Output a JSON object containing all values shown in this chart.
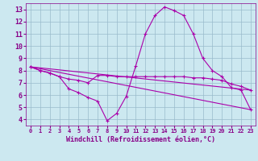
{
  "xlabel": "Windchill (Refroidissement éolien,°C)",
  "bg_color": "#cce8f0",
  "grid_color": "#99bbcc",
  "line_color": "#aa00aa",
  "text_color": "#880088",
  "xlim": [
    -0.5,
    23.5
  ],
  "ylim": [
    3.5,
    13.5
  ],
  "xticks": [
    0,
    1,
    2,
    3,
    4,
    5,
    6,
    7,
    8,
    9,
    10,
    11,
    12,
    13,
    14,
    15,
    16,
    17,
    18,
    19,
    20,
    21,
    22,
    23
  ],
  "yticks": [
    4,
    5,
    6,
    7,
    8,
    9,
    10,
    11,
    12,
    13
  ],
  "series": [
    {
      "x": [
        0,
        1,
        2,
        3,
        4,
        5,
        6,
        7,
        8,
        9,
        10,
        11,
        12,
        13,
        14,
        15,
        16,
        17,
        18,
        19,
        20,
        21,
        22,
        23
      ],
      "y": [
        8.3,
        8.0,
        7.8,
        7.5,
        6.5,
        6.2,
        5.8,
        5.5,
        3.9,
        4.5,
        5.9,
        8.4,
        11.0,
        12.5,
        13.2,
        12.9,
        12.5,
        11.0,
        9.0,
        8.0,
        7.5,
        6.6,
        6.4,
        4.8
      ],
      "marker": true
    },
    {
      "x": [
        0,
        1,
        2,
        3,
        4,
        5,
        6,
        7,
        8,
        9,
        10,
        11,
        12,
        13,
        14,
        15,
        16,
        17,
        18,
        19,
        20,
        21,
        22,
        23
      ],
      "y": [
        8.3,
        8.0,
        7.8,
        7.5,
        7.3,
        7.2,
        7.0,
        7.6,
        7.6,
        7.5,
        7.5,
        7.5,
        7.5,
        7.5,
        7.5,
        7.5,
        7.5,
        7.4,
        7.4,
        7.3,
        7.2,
        6.9,
        6.7,
        6.4
      ],
      "marker": true
    },
    {
      "x": [
        0,
        23
      ],
      "y": [
        8.3,
        4.8
      ],
      "marker": false
    },
    {
      "x": [
        0,
        23
      ],
      "y": [
        8.3,
        6.4
      ],
      "marker": false
    }
  ]
}
